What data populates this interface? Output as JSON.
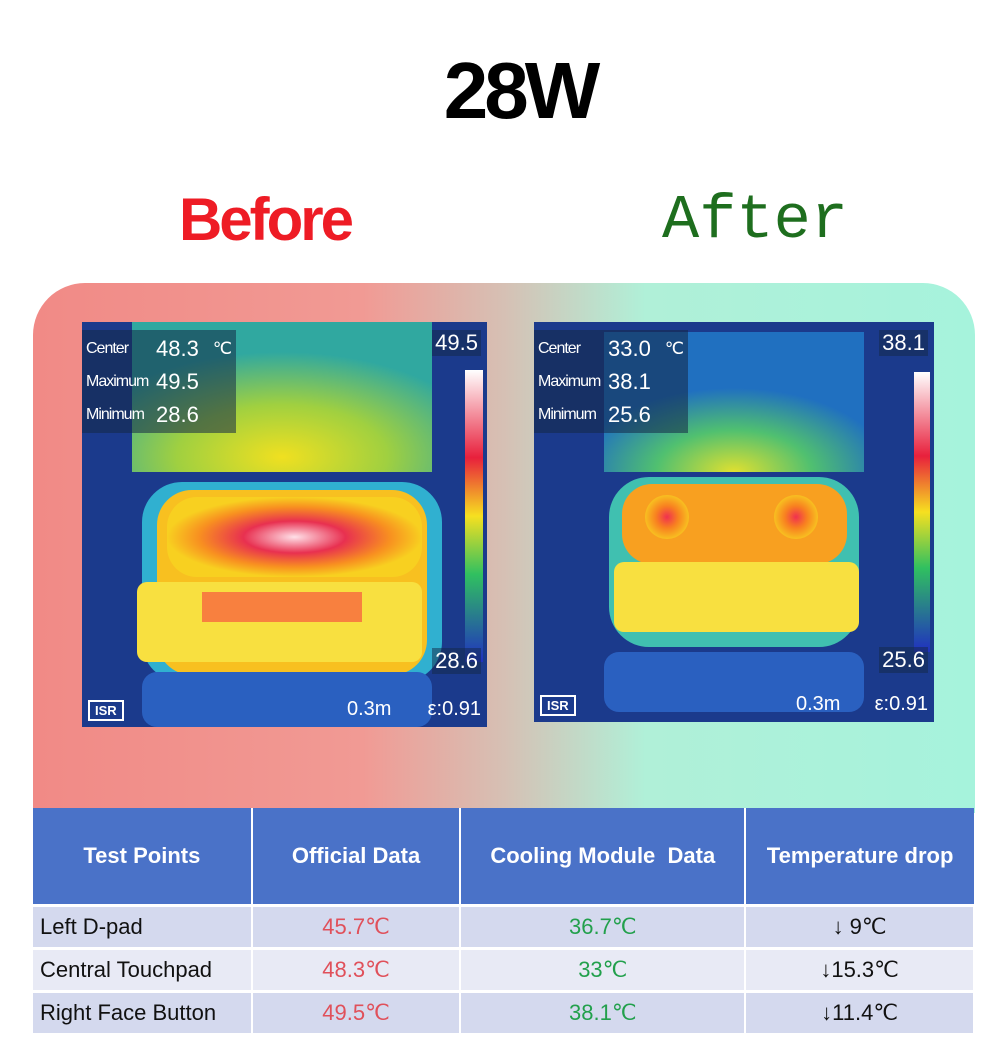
{
  "title": "28W",
  "panels": [
    {
      "label": "Before",
      "readings": [
        {
          "label": "Center",
          "value": "48.3",
          "unit": "℃"
        },
        {
          "label": "Maximum",
          "value": "49.5"
        },
        {
          "label": "Minimum",
          "value": "28.6"
        }
      ],
      "scale_max": "49.5",
      "scale_min": "28.6",
      "distance": "0.3m",
      "emissivity": "ε:0.91",
      "badge": "ISR"
    },
    {
      "label": "After",
      "readings": [
        {
          "label": "Center",
          "value": "33.0",
          "unit": "℃"
        },
        {
          "label": "Maximum",
          "value": "38.1"
        },
        {
          "label": "Minimum",
          "value": "25.6"
        }
      ],
      "scale_max": "38.1",
      "scale_min": "25.6",
      "distance": "0.3m",
      "emissivity": "ε:0.91",
      "badge": "ISR"
    }
  ],
  "table": {
    "header": [
      "Test Points",
      "Official Data",
      "Cooling Module  Data",
      "Temperature drop"
    ],
    "rows": [
      [
        "Left D-pad",
        "45.7℃",
        "36.7℃",
        "↓ 9℃"
      ],
      [
        "Central Touchpad",
        "48.3℃",
        "33℃",
        "↓15.3℃"
      ],
      [
        "Right Face Button",
        "49.5℃",
        "38.1℃",
        "↓11.4℃"
      ]
    ]
  }
}
